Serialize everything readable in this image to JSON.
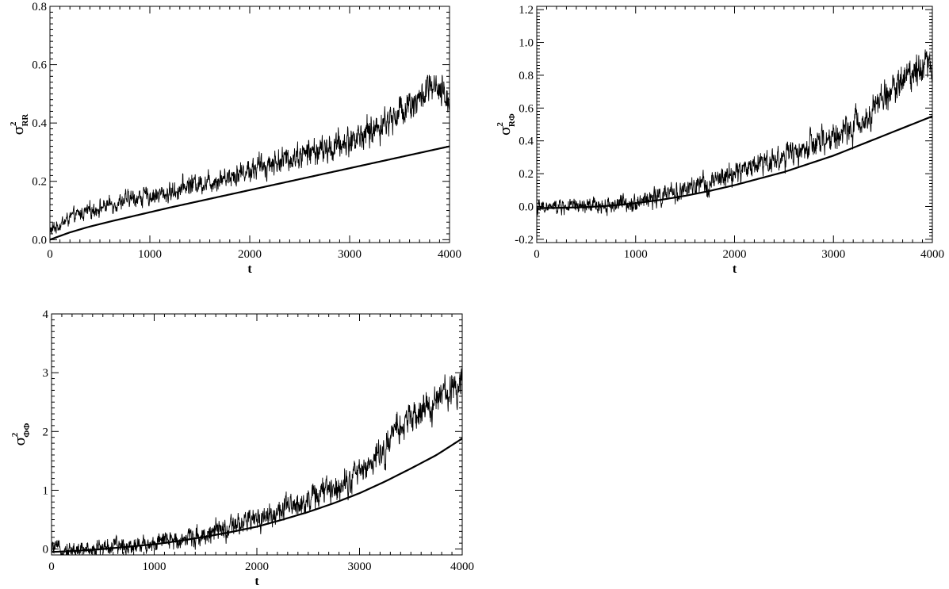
{
  "chart_data": [
    {
      "id": "rr",
      "type": "line",
      "xlabel": "t",
      "ylabel": {
        "symbol": "σ",
        "sup": "2",
        "sub": "RR"
      },
      "xlim": [
        0,
        4000
      ],
      "ylim": [
        -0.01,
        0.8
      ],
      "xticks": [
        0,
        1000,
        2000,
        3000,
        4000
      ],
      "xtick_labels": [
        "0",
        "1000",
        "2000",
        "3000",
        "4000"
      ],
      "yticks": [
        0.0,
        0.2,
        0.4,
        0.6,
        0.8
      ],
      "ytick_labels": [
        "0.0",
        "0.2",
        "0.4",
        "0.6",
        "0.8"
      ],
      "grid": false,
      "series": [
        {
          "style": "noisy",
          "x": [
            0,
            200,
            400,
            600,
            800,
            1000,
            1200,
            1400,
            1600,
            1800,
            2000,
            2200,
            2400,
            2600,
            2800,
            3000,
            3200,
            3400,
            3600,
            3700,
            3800,
            3900,
            4000
          ],
          "y": [
            0.03,
            0.075,
            0.1,
            0.12,
            0.14,
            0.15,
            0.16,
            0.19,
            0.2,
            0.22,
            0.24,
            0.26,
            0.28,
            0.3,
            0.31,
            0.34,
            0.37,
            0.41,
            0.47,
            0.48,
            0.52,
            0.5,
            0.48
          ]
        },
        {
          "style": "smooth",
          "x": [
            0,
            200,
            400,
            600,
            800,
            1000,
            1200,
            1400,
            1600,
            1800,
            2000,
            2200,
            2400,
            2600,
            2800,
            3000,
            3200,
            3400,
            3600,
            3800,
            4000
          ],
          "y": [
            0.0,
            0.025,
            0.045,
            0.062,
            0.078,
            0.094,
            0.11,
            0.125,
            0.14,
            0.155,
            0.17,
            0.185,
            0.2,
            0.215,
            0.23,
            0.245,
            0.26,
            0.275,
            0.29,
            0.305,
            0.32
          ]
        }
      ]
    },
    {
      "id": "rphi",
      "type": "line",
      "xlabel": "t",
      "ylabel": {
        "symbol": "σ",
        "sup": "2",
        "sub": "RΦ"
      },
      "xlim": [
        0,
        4000
      ],
      "ylim": [
        -0.22,
        1.22
      ],
      "xticks": [
        0,
        1000,
        2000,
        3000,
        4000
      ],
      "xtick_labels": [
        "0",
        "1000",
        "2000",
        "3000",
        "4000"
      ],
      "yticks": [
        -0.2,
        0.0,
        0.2,
        0.4,
        0.6,
        0.8,
        1.0,
        1.2
      ],
      "ytick_labels": [
        "-0.2",
        "0.0",
        "0.2",
        "0.4",
        "0.6",
        "0.8",
        "1.0",
        "1.2"
      ],
      "grid": false,
      "series": [
        {
          "style": "noisy",
          "x": [
            0,
            250,
            500,
            750,
            1000,
            1250,
            1500,
            1750,
            2000,
            2250,
            2500,
            2750,
            3000,
            3250,
            3500,
            3750,
            3900,
            4000
          ],
          "y": [
            -0.01,
            0.0,
            0.0,
            0.01,
            0.03,
            0.06,
            0.1,
            0.14,
            0.2,
            0.27,
            0.3,
            0.36,
            0.42,
            0.5,
            0.66,
            0.8,
            0.88,
            0.86
          ]
        },
        {
          "style": "smooth",
          "x": [
            0,
            250,
            500,
            750,
            1000,
            1250,
            1500,
            1750,
            2000,
            2250,
            2500,
            2750,
            3000,
            3250,
            3500,
            3750,
            4000
          ],
          "y": [
            -0.01,
            -0.008,
            -0.004,
            0.005,
            0.02,
            0.04,
            0.065,
            0.095,
            0.13,
            0.17,
            0.21,
            0.26,
            0.31,
            0.37,
            0.43,
            0.49,
            0.55
          ]
        }
      ]
    },
    {
      "id": "phiphi",
      "type": "line",
      "xlabel": "t",
      "ylabel": {
        "symbol": "σ",
        "sup": "2",
        "sub": "ΦΦ"
      },
      "xlim": [
        0,
        4000
      ],
      "ylim": [
        -0.1,
        4.0
      ],
      "xticks": [
        0,
        1000,
        2000,
        3000,
        4000
      ],
      "xtick_labels": [
        "0",
        "1000",
        "2000",
        "3000",
        "4000"
      ],
      "yticks": [
        0,
        1,
        2,
        3,
        4
      ],
      "ytick_labels": [
        "0",
        "1",
        "2",
        "3",
        "4"
      ],
      "grid": false,
      "series": [
        {
          "style": "noisy",
          "x": [
            0,
            250,
            500,
            750,
            1000,
            1250,
            1500,
            1750,
            2000,
            2250,
            2500,
            2750,
            3000,
            3250,
            3400,
            3500,
            3750,
            4000
          ],
          "y": [
            0.02,
            -0.02,
            0.03,
            0.06,
            0.1,
            0.17,
            0.25,
            0.35,
            0.52,
            0.65,
            0.84,
            1.05,
            1.3,
            1.7,
            2.1,
            2.2,
            2.5,
            2.9
          ]
        },
        {
          "style": "smooth",
          "x": [
            0,
            250,
            500,
            750,
            1000,
            1250,
            1500,
            1750,
            2000,
            2250,
            2500,
            2750,
            3000,
            3250,
            3500,
            3750,
            4000
          ],
          "y": [
            -0.05,
            -0.03,
            0.0,
            0.04,
            0.08,
            0.14,
            0.21,
            0.29,
            0.38,
            0.5,
            0.63,
            0.78,
            0.95,
            1.15,
            1.37,
            1.6,
            1.88
          ]
        }
      ]
    }
  ]
}
